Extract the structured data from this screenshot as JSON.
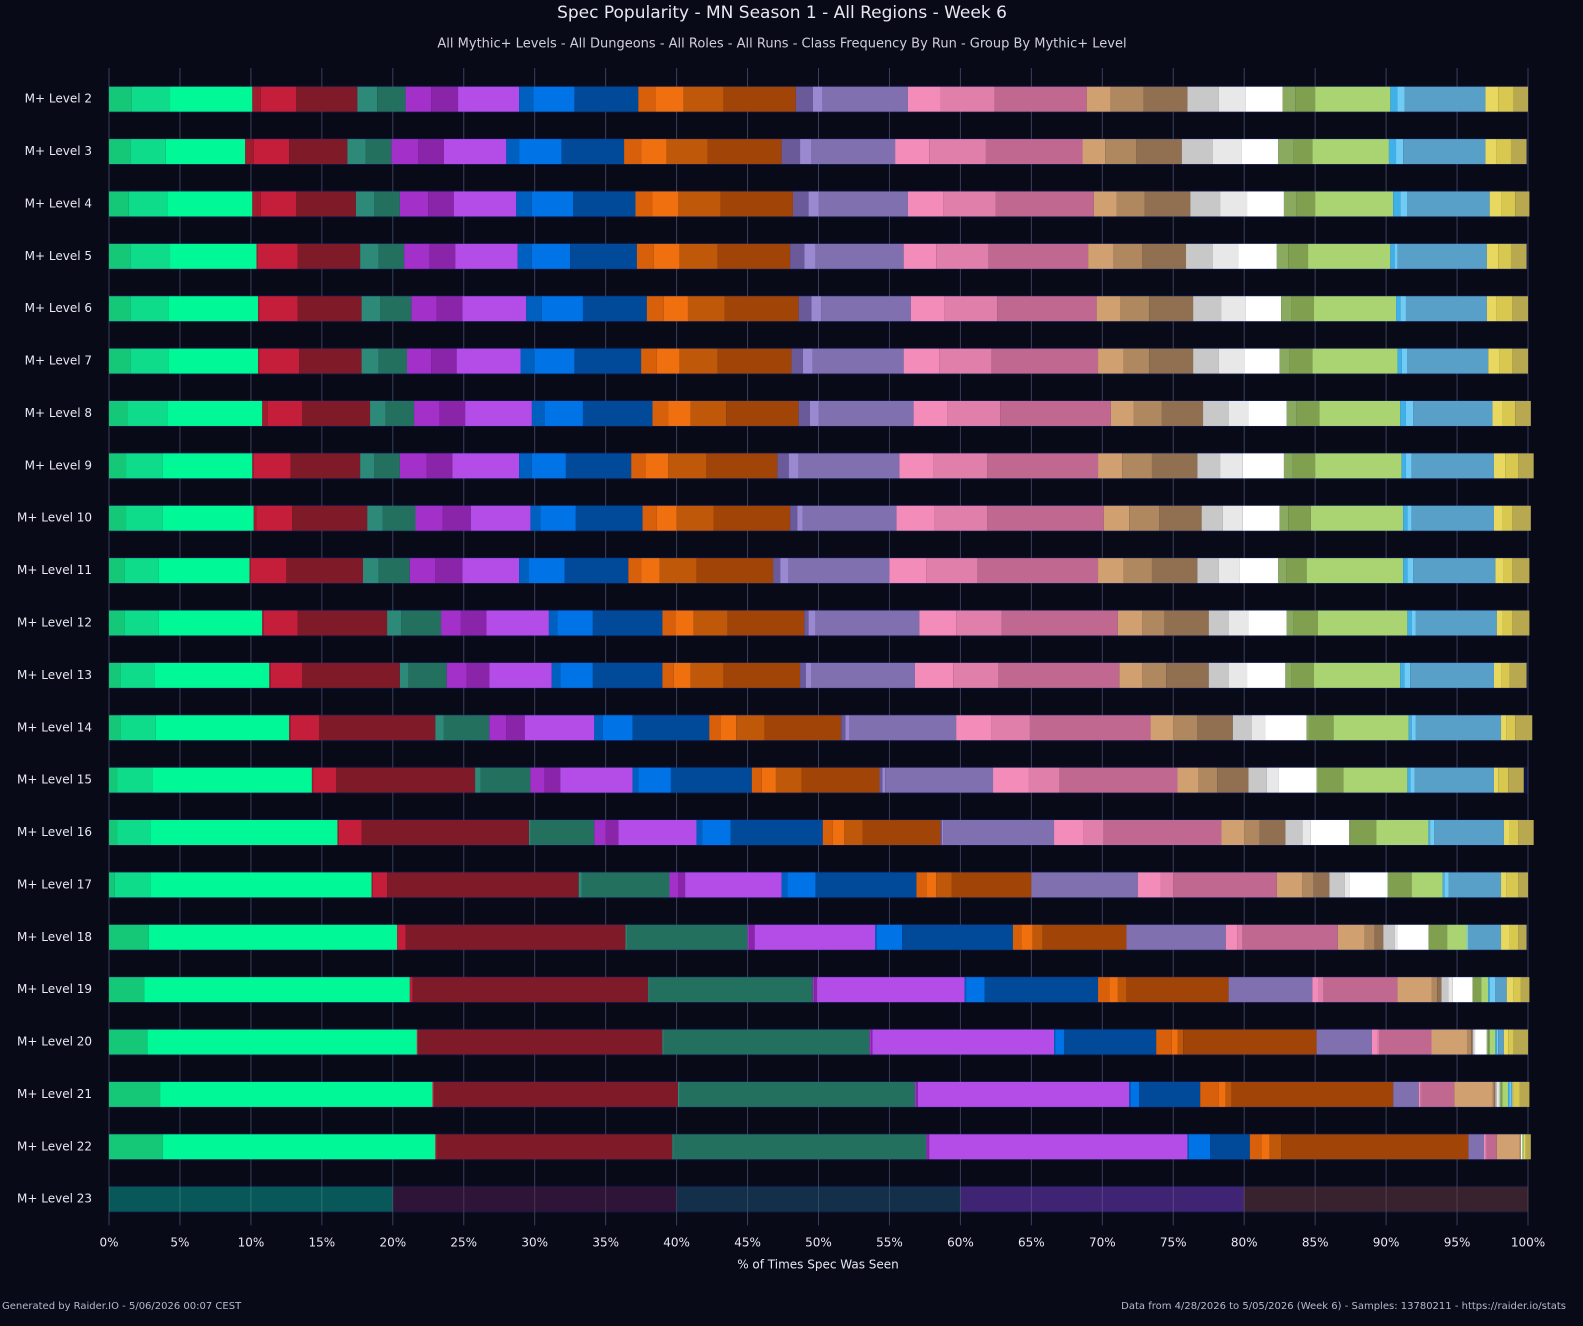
{
  "chart_data": {
    "type": "bar",
    "orientation": "horizontal",
    "stacked": true,
    "title": "Spec Popularity - MN Season 1 - All Regions - Week 6",
    "subtitle": "All Mythic+ Levels - All Dungeons - All Roles - All Runs - Class Frequency By Run - Group By Mythic+ Level",
    "x_label": "% of Times Spec Was Seen",
    "footer_left": "Generated by Raider.IO - 5/06/2026 00:07 CEST",
    "footer_right": "Data from 4/28/2026 to 5/05/2026 (Week 6) - Samples: 13780211 - https://raider.io/stats",
    "categories": [
      "M+ Level 2",
      "M+ Level 3",
      "M+ Level 4",
      "M+ Level 5",
      "M+ Level 6",
      "M+ Level 7",
      "M+ Level 8",
      "M+ Level 9",
      "M+ Level 10",
      "M+ Level 11",
      "M+ Level 12",
      "M+ Level 13",
      "M+ Level 14",
      "M+ Level 15",
      "M+ Level 16",
      "M+ Level 17",
      "M+ Level 18",
      "M+ Level 19",
      "M+ Level 20",
      "M+ Level 21",
      "M+ Level 22",
      "M+ Level 23"
    ],
    "dimmed_categories": [
      "M+ Level 23"
    ],
    "xlim": [
      0,
      100
    ],
    "xticks": [
      {
        "value": 0,
        "label": "0%"
      },
      {
        "value": 5,
        "label": "5%"
      },
      {
        "value": 10,
        "label": "10%"
      },
      {
        "value": 15,
        "label": "15%"
      },
      {
        "value": 20,
        "label": "20%"
      },
      {
        "value": 25,
        "label": "25%"
      },
      {
        "value": 30,
        "label": "30%"
      },
      {
        "value": 35,
        "label": "35%"
      },
      {
        "value": 40,
        "label": "40%"
      },
      {
        "value": 45,
        "label": "45%"
      },
      {
        "value": 50,
        "label": "50%"
      },
      {
        "value": 55,
        "label": "55%"
      },
      {
        "value": 60,
        "label": "60%"
      },
      {
        "value": 65,
        "label": "65%"
      },
      {
        "value": 70,
        "label": "70%"
      },
      {
        "value": 75,
        "label": "75%"
      },
      {
        "value": 80,
        "label": "80%"
      },
      {
        "value": 85,
        "label": "85%"
      },
      {
        "value": 90,
        "label": "90%"
      },
      {
        "value": 95,
        "label": "95%"
      },
      {
        "value": 100,
        "label": "100%"
      }
    ],
    "grid": true,
    "series": [
      {
        "color": "#14c878",
        "values": [
          1.6,
          1.5,
          1.4,
          1.5,
          1.5,
          1.5,
          1.3,
          1.2,
          1.2,
          1.1,
          1.1,
          0.8,
          0.8,
          0.6,
          0.6,
          0.4,
          2.8,
          2.5,
          2.7,
          3.6,
          3.8,
          0
        ]
      },
      {
        "color": "#0fdc8a",
        "values": [
          2.7,
          2.5,
          2.7,
          2.8,
          2.7,
          2.7,
          2.8,
          2.6,
          2.6,
          2.4,
          2.4,
          2.4,
          2.5,
          2.5,
          2.3,
          2.5,
          0,
          0,
          0,
          0,
          0,
          0
        ]
      },
      {
        "color": "#00f896",
        "values": [
          5.8,
          5.6,
          6.0,
          6.1,
          6.3,
          6.3,
          6.7,
          6.3,
          6.4,
          6.4,
          7.3,
          8.1,
          9.4,
          11.2,
          13.2,
          15.6,
          17.5,
          18.7,
          19.0,
          19.2,
          19.2,
          20
        ]
      },
      {
        "color": "#a01c2c",
        "values": [
          0.6,
          0.6,
          0.6,
          0.1,
          0.1,
          0.1,
          0.4,
          0.1,
          0.2,
          0.1,
          0.1,
          0.1,
          0.1,
          0.1,
          0.1,
          0.1,
          0,
          0,
          0,
          0,
          0,
          0
        ]
      },
      {
        "color": "#c41e3a",
        "values": [
          2.5,
          2.5,
          2.5,
          2.8,
          2.7,
          2.8,
          2.4,
          2.6,
          2.5,
          2.5,
          2.4,
          2.2,
          2.0,
          1.6,
          1.6,
          1.0,
          0.6,
          0.2,
          0.1,
          0.1,
          0.1,
          0
        ]
      },
      {
        "color": "#7f1a28",
        "values": [
          4.3,
          4.1,
          4.2,
          4.4,
          4.5,
          4.4,
          4.8,
          4.9,
          5.3,
          5.4,
          6.3,
          6.9,
          8.2,
          9.8,
          11.8,
          13.5,
          15.5,
          16.6,
          17.2,
          17.2,
          16.6,
          20
        ]
      },
      {
        "color": "#2e8a78",
        "values": [
          1.4,
          1.3,
          1.3,
          1.3,
          1.3,
          1.2,
          1.1,
          1.0,
          1.1,
          1.1,
          1.0,
          0.6,
          0.6,
          0.4,
          0.1,
          0.2,
          0.1,
          0.1,
          0.1,
          0.1,
          0.1,
          0
        ]
      },
      {
        "color": "#23705f",
        "values": [
          2.0,
          1.8,
          1.8,
          1.8,
          2.2,
          2.0,
          2.0,
          1.8,
          2.3,
          2.2,
          2.8,
          2.7,
          3.2,
          3.5,
          4.5,
          6.2,
          8.5,
          11.5,
          14.5,
          16.6,
          17.8,
          20
        ]
      },
      {
        "color": "#a330c9",
        "values": [
          1.8,
          1.9,
          2.0,
          1.8,
          1.8,
          1.7,
          1.8,
          1.9,
          1.9,
          1.8,
          1.4,
          1.4,
          1.2,
          1.0,
          0.8,
          0.6,
          0.1,
          0.1,
          0.1,
          0.1,
          0.1,
          0
        ]
      },
      {
        "color": "#8a25aa",
        "values": [
          1.9,
          1.8,
          1.8,
          1.8,
          1.8,
          1.8,
          1.8,
          1.8,
          2.0,
          1.9,
          1.8,
          1.6,
          1.3,
          1.1,
          0.9,
          0.5,
          0.4,
          0.2,
          0.1,
          0.1,
          0.1,
          0
        ]
      },
      {
        "color": "#b44de8",
        "values": [
          4.3,
          4.4,
          4.4,
          4.4,
          4.5,
          4.5,
          4.7,
          4.7,
          4.2,
          4.0,
          4.4,
          4.4,
          4.9,
          5.1,
          5.5,
          6.8,
          8.5,
          10.4,
          12.8,
          14.9,
          18.2,
          20
        ]
      },
      {
        "color": "#0060c0",
        "values": [
          1.0,
          0.9,
          1.1,
          1.0,
          1.1,
          1.0,
          0.9,
          0.9,
          0.7,
          0.7,
          0.6,
          0.6,
          0.6,
          0.4,
          0.4,
          0.4,
          0.1,
          0.1,
          0.1,
          0.1,
          0.1,
          0
        ]
      },
      {
        "color": "#0073e6",
        "values": [
          2.9,
          3.0,
          2.9,
          2.7,
          2.9,
          2.8,
          2.7,
          2.4,
          2.5,
          2.5,
          2.5,
          2.3,
          2.1,
          2.3,
          2.0,
          2.0,
          1.8,
          1.3,
          0.6,
          0.6,
          1.5,
          0
        ]
      },
      {
        "color": "#004a99",
        "values": [
          4.5,
          4.4,
          4.4,
          4.7,
          4.5,
          4.7,
          4.9,
          4.6,
          4.7,
          4.5,
          4.9,
          4.9,
          5.4,
          5.7,
          6.5,
          7.1,
          7.8,
          8.0,
          6.5,
          4.3,
          2.8,
          0
        ]
      },
      {
        "color": "#d9600a",
        "values": [
          1.2,
          1.2,
          1.2,
          1.2,
          1.2,
          1.1,
          1.1,
          1.0,
          1.0,
          0.9,
          0.9,
          0.8,
          0.8,
          0.7,
          0.7,
          0.7,
          0.6,
          0.8,
          1.1,
          1.3,
          0.8,
          0
        ]
      },
      {
        "color": "#f07010",
        "values": [
          2.0,
          1.8,
          1.8,
          1.8,
          1.7,
          1.6,
          1.6,
          1.6,
          1.4,
          1.3,
          1.3,
          1.2,
          1.1,
          1.0,
          0.8,
          0.7,
          0.8,
          0.6,
          0.4,
          0.5,
          0.6,
          0
        ]
      },
      {
        "color": "#c0580a",
        "values": [
          2.8,
          2.9,
          3.0,
          2.7,
          2.6,
          2.7,
          2.5,
          2.7,
          2.6,
          2.6,
          2.4,
          2.3,
          2.0,
          1.8,
          1.3,
          1.1,
          0.7,
          0.6,
          0.4,
          0.4,
          0.8,
          0
        ]
      },
      {
        "color": "#a04408",
        "values": [
          5.1,
          5.2,
          5.1,
          5.1,
          5.2,
          5.2,
          5.1,
          5.0,
          5.4,
          5.4,
          5.4,
          5.4,
          5.4,
          5.5,
          5.5,
          5.6,
          5.9,
          7.2,
          9.4,
          11.4,
          13.2,
          20
        ]
      },
      {
        "color": "#6a5a9a",
        "values": [
          1.2,
          1.3,
          1.1,
          1.0,
          0.9,
          0.8,
          0.8,
          0.8,
          0.5,
          0.5,
          0.3,
          0.4,
          0.3,
          0.2,
          0.1,
          0,
          0,
          0,
          0,
          0,
          0,
          0
        ]
      },
      {
        "color": "#9a88d0",
        "values": [
          0.7,
          0.8,
          0.7,
          0.8,
          0.7,
          0.7,
          0.6,
          0.7,
          0.4,
          0.6,
          0.5,
          0.4,
          0.3,
          0.2,
          0.1,
          0,
          0,
          0,
          0,
          0,
          0,
          0
        ]
      },
      {
        "color": "#8070b0",
        "values": [
          6.0,
          5.9,
          6.3,
          6.2,
          6.3,
          6.4,
          6.7,
          7.1,
          6.6,
          7.1,
          7.3,
          7.3,
          7.5,
          7.6,
          7.8,
          7.5,
          7.0,
          5.9,
          3.9,
          1.8,
          1.1,
          0
        ]
      },
      {
        "color": "#f48cba",
        "values": [
          2.3,
          2.4,
          2.5,
          2.3,
          2.4,
          2.5,
          2.4,
          2.4,
          2.7,
          2.6,
          2.6,
          2.7,
          2.5,
          2.5,
          2.1,
          1.6,
          0.8,
          0.4,
          0.4,
          0.1,
          0.1,
          0
        ]
      },
      {
        "color": "#e080aa",
        "values": [
          3.8,
          4.0,
          3.7,
          3.7,
          3.7,
          3.7,
          3.7,
          3.8,
          3.7,
          3.6,
          3.2,
          3.2,
          2.7,
          2.2,
          1.4,
          0.9,
          0.4,
          0.4,
          0.1,
          0.1,
          0.1,
          0
        ]
      },
      {
        "color": "#c06890",
        "values": [
          6.5,
          6.8,
          6.9,
          7.0,
          7.0,
          7.5,
          7.8,
          7.8,
          8.2,
          8.5,
          8.2,
          8.5,
          8.5,
          8.3,
          8.3,
          7.3,
          6.7,
          5.2,
          3.7,
          2.3,
          0.7,
          0
        ]
      },
      {
        "color": "#d0a070",
        "values": [
          1.7,
          1.6,
          1.6,
          1.8,
          1.7,
          1.8,
          1.6,
          1.7,
          1.8,
          1.8,
          1.7,
          1.6,
          1.6,
          1.5,
          1.6,
          1.8,
          1.9,
          2.4,
          2.5,
          2.7,
          1.6,
          0
        ]
      },
      {
        "color": "#b08860",
        "values": [
          2.3,
          2.2,
          2.0,
          2.0,
          2.0,
          1.8,
          2.0,
          2.1,
          2.1,
          2.0,
          1.6,
          1.7,
          1.7,
          1.3,
          1.1,
          0.8,
          0.7,
          0.4,
          0.3,
          0.1,
          0.1,
          0
        ]
      },
      {
        "color": "#907050",
        "values": [
          3.1,
          3.2,
          3.2,
          3.1,
          3.1,
          3.1,
          2.9,
          3.2,
          3.0,
          3.2,
          3.1,
          3.0,
          2.5,
          2.2,
          1.8,
          1.1,
          0.6,
          0.3,
          0.1,
          0.1,
          0,
          0
        ]
      },
      {
        "color": "#c8c8c8",
        "values": [
          2.2,
          2.2,
          2.1,
          1.9,
          2.0,
          1.8,
          1.8,
          1.6,
          1.5,
          1.5,
          1.4,
          1.4,
          1.3,
          1.3,
          1.2,
          1.1,
          0.8,
          0.5,
          0.1,
          0.1,
          0,
          0
        ]
      },
      {
        "color": "#e8e8e8",
        "values": [
          1.9,
          2.0,
          1.9,
          1.8,
          1.7,
          1.8,
          1.4,
          1.6,
          1.4,
          1.5,
          1.4,
          1.3,
          1.0,
          0.8,
          0.6,
          0.3,
          0.2,
          0.3,
          0.1,
          0.1,
          0,
          0
        ]
      },
      {
        "color": "#ffffff",
        "values": [
          2.6,
          2.6,
          2.6,
          2.7,
          2.5,
          2.5,
          2.7,
          2.9,
          2.6,
          2.7,
          2.7,
          2.7,
          2.9,
          2.7,
          2.7,
          2.7,
          2.2,
          1.4,
          0.8,
          0.1,
          0.1,
          0
        ]
      },
      {
        "color": "#8aaa60",
        "values": [
          0.9,
          1.1,
          0.9,
          0.8,
          0.7,
          0.7,
          0.7,
          0.6,
          0.6,
          0.6,
          0.5,
          0.4,
          0.2,
          0.1,
          0.1,
          0.1,
          0,
          0,
          0.1,
          0.1,
          0,
          0
        ]
      },
      {
        "color": "#80a050",
        "values": [
          1.4,
          1.3,
          1.3,
          1.4,
          1.6,
          1.6,
          1.6,
          1.6,
          1.6,
          1.4,
          1.7,
          1.6,
          1.7,
          1.8,
          1.8,
          1.6,
          1.3,
          0.6,
          0.1,
          0.1,
          0,
          0
        ]
      },
      {
        "color": "#aad372",
        "values": [
          5.3,
          5.4,
          5.5,
          5.8,
          5.8,
          6.0,
          5.7,
          6.1,
          6.5,
          6.8,
          6.3,
          6.1,
          5.3,
          4.5,
          3.7,
          2.2,
          1.4,
          0.5,
          0.4,
          0.4,
          0.1,
          0
        ]
      },
      {
        "color": "#3fb0e8",
        "values": [
          0.5,
          0.5,
          0.5,
          0.3,
          0.3,
          0.3,
          0.4,
          0.3,
          0.3,
          0.3,
          0.3,
          0.3,
          0.2,
          0.2,
          0.1,
          0.1,
          0,
          0.1,
          0.1,
          0.1,
          0,
          0
        ]
      },
      {
        "color": "#70ccf4",
        "values": [
          0.5,
          0.5,
          0.5,
          0.2,
          0.4,
          0.4,
          0.5,
          0.4,
          0.3,
          0.4,
          0.3,
          0.4,
          0.3,
          0.3,
          0.3,
          0.3,
          0.1,
          0.4,
          0.1,
          0.1,
          0,
          0
        ]
      },
      {
        "color": "#58a0c8",
        "values": [
          5.7,
          5.8,
          5.8,
          6.3,
          5.7,
          5.7,
          5.6,
          5.8,
          5.8,
          5.8,
          5.7,
          5.9,
          6.0,
          5.6,
          4.9,
          3.7,
          2.3,
          0.8,
          0.4,
          0.1,
          0,
          0
        ]
      },
      {
        "color": "#e8d860",
        "values": [
          0.9,
          0.8,
          0.8,
          0.8,
          0.7,
          0.8,
          0.7,
          0.8,
          0.6,
          0.6,
          0.4,
          0.5,
          0.4,
          0.3,
          0.4,
          0.4,
          0.6,
          0.5,
          0.3,
          0.1,
          0.1,
          0
        ]
      },
      {
        "color": "#d8c850",
        "values": [
          1.1,
          1.0,
          1.0,
          0.9,
          1.1,
          0.9,
          0.9,
          0.9,
          0.7,
          0.6,
          0.7,
          0.6,
          0.6,
          0.7,
          0.6,
          0.8,
          0.6,
          0.5,
          0.4,
          0.4,
          0.1,
          0
        ]
      },
      {
        "color": "#b8a850",
        "values": [
          1.0,
          1.1,
          1.0,
          1.1,
          1.1,
          1.1,
          1.1,
          1.1,
          1.3,
          1.2,
          1.2,
          1.2,
          1.2,
          1.1,
          1.1,
          0.7,
          0.6,
          0.6,
          1.0,
          0.7,
          0.3,
          0
        ]
      }
    ]
  }
}
